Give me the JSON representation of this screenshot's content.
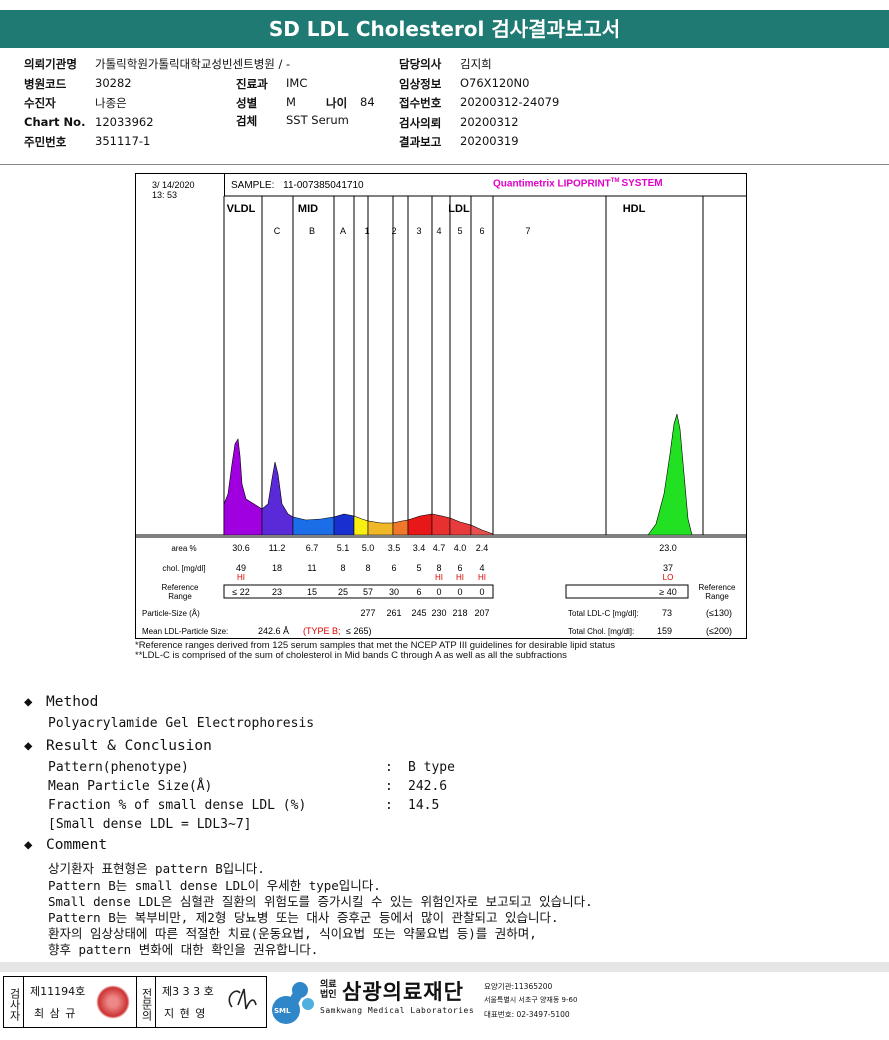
{
  "header": {
    "title": "SD LDL Cholesterol 검사결과보고서"
  },
  "patient_info": {
    "institution_label": "의뢰기관명",
    "institution": "가톨릭학원가톨릭대학교성빈센트병원 / -",
    "hospital_code_label": "병원코드",
    "hospital_code": "30282",
    "dept_label": "진료과",
    "dept": "IMC",
    "patient_label": "수진자",
    "patient": "나종은",
    "sex_label": "성별",
    "sex": "M",
    "age_label": "나이",
    "age": "84",
    "chart_label": "Chart No.",
    "chart": "12033962",
    "specimen_label": "검체",
    "specimen": "SST Serum",
    "id_label": "주민번호",
    "id": "351117-1",
    "doctor_label": "담당의사",
    "doctor": "김지희",
    "clinical_label": "임상정보",
    "clinical": "O76X120N0",
    "receipt_label": "접수번호",
    "receipt": "20200312-24079",
    "request_label": "검사의뢰",
    "request": "20200312",
    "report_label": "결과보고",
    "report": "20200319"
  },
  "lipoprint": {
    "date": "3/ 14/2020",
    "time": "13: 53",
    "sample_label": "SAMPLE:",
    "sample_id": "11-007385041710",
    "brand": "Quantimetrix LIPOPRINT",
    "brand_tm": "TM",
    "brand_suffix": "SYSTEM",
    "groups": {
      "vldl": "VLDL",
      "mid": "MID",
      "ldl": "LDL",
      "hdl": "HDL"
    },
    "bands": [
      "C",
      "B",
      "A",
      "1",
      "2",
      "3",
      "4",
      "5",
      "6",
      "7"
    ],
    "area_label": "area %",
    "area": [
      "30.6",
      "11.2",
      "6.7",
      "5.1",
      "5.0",
      "3.5",
      "3.4",
      "4.7",
      "4.0",
      "2.4"
    ],
    "area_hdl": "23.0",
    "chol_label": "chol. [mg/dl]",
    "chol": [
      "49",
      "18",
      "11",
      "8",
      "8",
      "6",
      "5",
      "8",
      "6",
      "4"
    ],
    "chol_hdl": "37",
    "flags": [
      "HI",
      "",
      "",
      "",
      "",
      "",
      "",
      "HI",
      "HI",
      "HI"
    ],
    "flag_hdl": "LO",
    "ref_label": "Reference Range",
    "ref": [
      "≤ 22",
      "23",
      "15",
      "25",
      "57",
      "30",
      "6",
      "0",
      "0",
      "0"
    ],
    "ref_hdl": "≥ 40",
    "ref_label_right": "Reference Range",
    "particle_label": "Particle-Size (Å)",
    "particle": [
      "277",
      "261",
      "245",
      "230",
      "218",
      "207"
    ],
    "total_ldlc_label": "Total LDL-C [mg/dl]:",
    "total_ldlc": "73",
    "total_ldlc_ref": "(≤130)",
    "mean_label": "Mean LDL-Particle Size:",
    "mean_value": "242.6 Å",
    "mean_type": "(TYPE B;",
    "mean_ref": "≤ 265)",
    "total_chol_label": "Total Chol. [mg/dl]:",
    "total_chol": "159",
    "total_chol_ref": "(≤200)",
    "note1": "*Reference ranges derived from 125 serum samples that met the NCEP ATP III guidelines for desirable lipid status",
    "note2": "**LDL-C is comprised of the sum of cholesterol in Mid bands C through A as well as all the subfractions"
  },
  "sections": {
    "method_title": "Method",
    "method_text": "Polyacrylamide Gel Electrophoresis",
    "result_title": "Result & Conclusion",
    "results": [
      {
        "label": "Pattern(phenotype)",
        "colon": ":",
        "value": "B type"
      },
      {
        "label": "Mean Particle Size(Å)",
        "colon": ":",
        "value": "242.6"
      },
      {
        "label": "Fraction % of small dense LDL (%)",
        "colon": ":",
        "value": "14.5"
      }
    ],
    "result_note": "[Small dense LDL = LDL3~7]",
    "comment_title": "Comment",
    "comments": [
      "상기환자 표현형은 pattern B입니다.",
      "Pattern B는 small dense LDL이 우세한 type입니다.",
      "Small dense LDL은 심혈관 질환의 위험도를 증가시킬 수 있는 위험인자로 보고되고 있습니다.",
      "Pattern B는 복부비만, 제2형 당뇨병 또는 대사 증후군 등에서 많이 관찰되고 있습니다.",
      "환자의 임상상태에 따른 적절한 치료(운동요법, 식이요법 또는 약물요법 등)를 권하며,",
      "향후 pattern 변화에 대한 확인을 권유합니다."
    ]
  },
  "footer": {
    "tester_label": "검사자",
    "tester_no": "제11194호",
    "tester_name": "최 삼 규",
    "specialist_label": "전문의",
    "specialist_no": "제3 3 3 호",
    "specialist_name": "지 현 영",
    "org_prefix": "의료법인",
    "org_name": "삼광의료재단",
    "org_en": "Samkwang Medical Laboratories",
    "org_logo": "SML",
    "org_code": "요양기관:11365200",
    "org_addr": "서울특별시 서초구 양재동 9-60",
    "org_tel": "대표번호: 02-3497-5100"
  }
}
